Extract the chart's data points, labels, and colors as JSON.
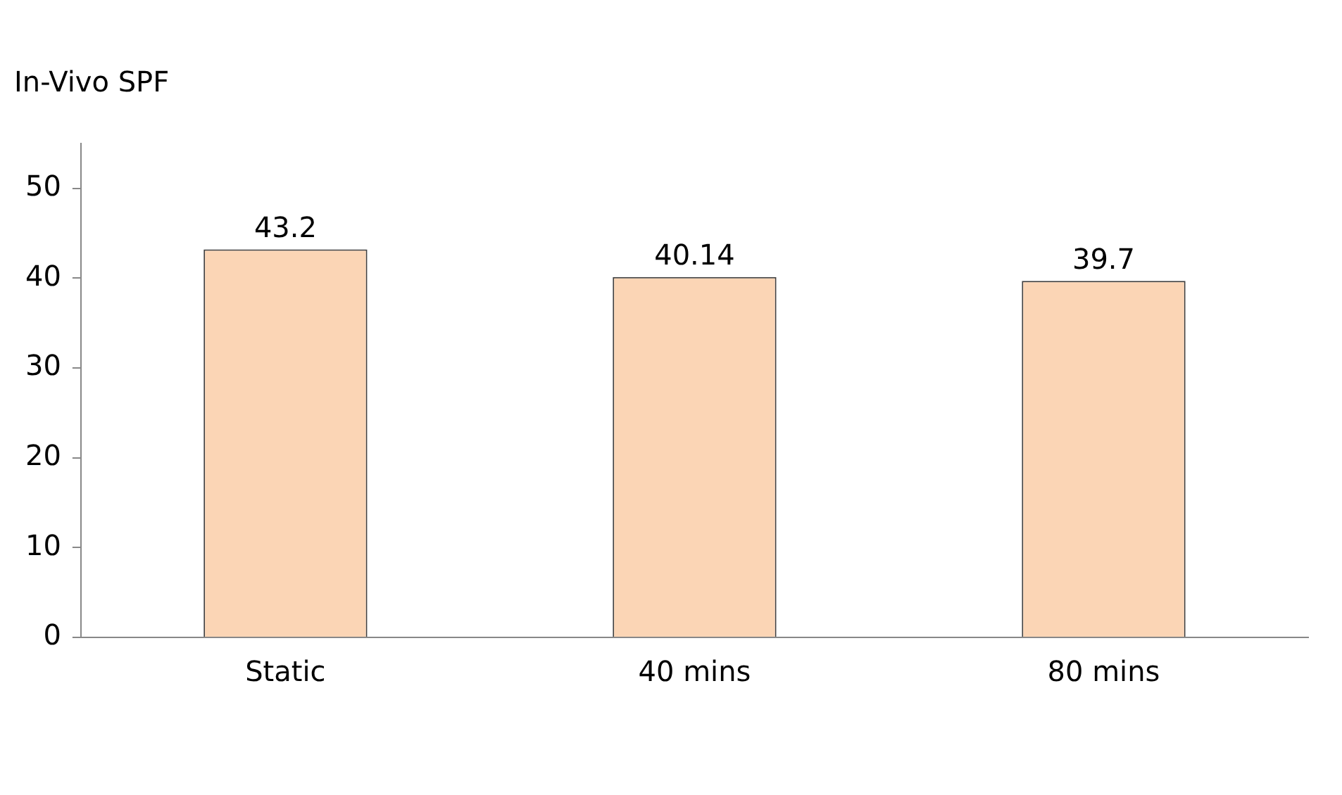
{
  "chart_data": {
    "type": "bar",
    "title": "In-Vivo SPF",
    "categories": [
      "Static",
      "40 mins",
      "80 mins"
    ],
    "values": [
      43.2,
      40.14,
      39.7
    ],
    "color": "#fbd5b5",
    "ylim": [
      0,
      55
    ],
    "yticks": [
      0,
      10,
      20,
      30,
      40,
      50
    ],
    "grid": false,
    "legend": false,
    "data_labels": true
  }
}
